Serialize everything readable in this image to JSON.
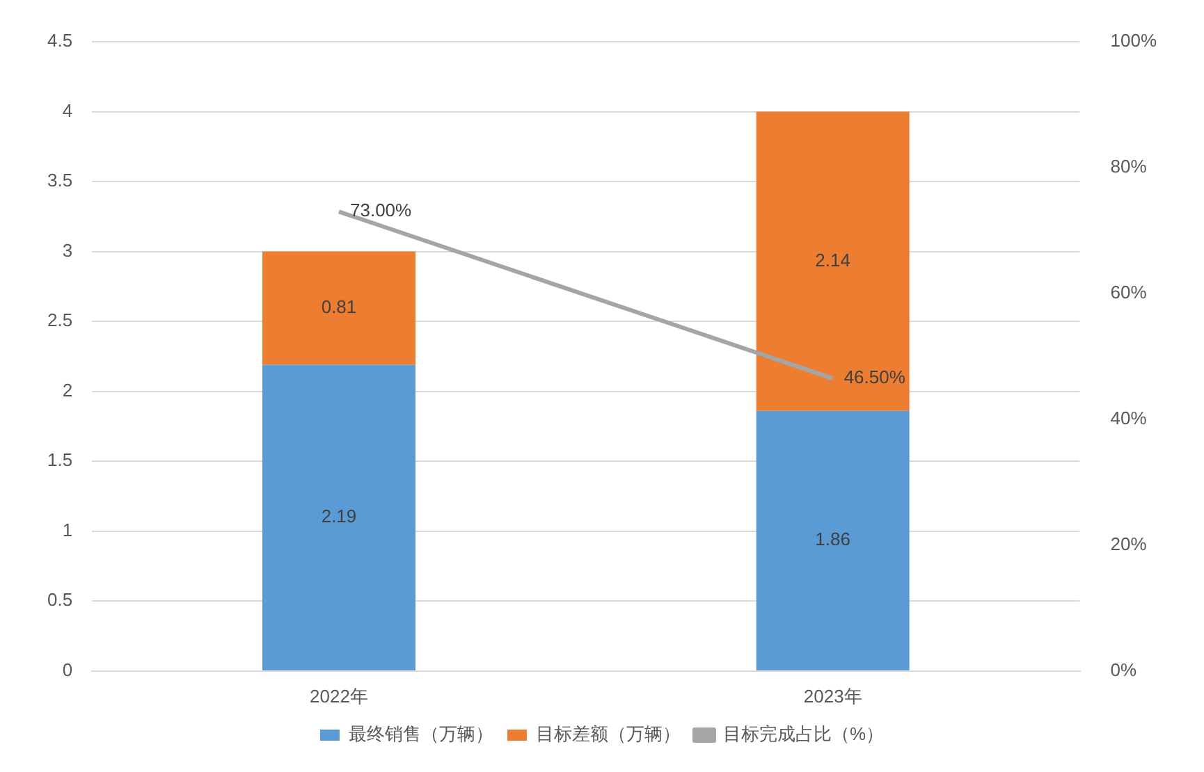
{
  "chart_data": {
    "type": "bar",
    "stacked": true,
    "categories": [
      "2022年",
      "2023年"
    ],
    "series": [
      {
        "name": "最终销售（万辆）",
        "color": "#5b9bd5",
        "values": [
          2.19,
          1.86
        ],
        "value_labels": [
          "2.19",
          "1.86"
        ]
      },
      {
        "name": "目标差额（万辆）",
        "color": "#ed7d31",
        "values": [
          0.81,
          2.14
        ],
        "value_labels": [
          "0.81",
          "2.14"
        ]
      },
      {
        "name": "目标完成占比（%）",
        "type": "line",
        "axis": "y2",
        "marker": "none",
        "color": "#a5a5a5",
        "values": [
          73,
          46.5
        ],
        "value_labels": [
          "73.00%",
          "46.50%"
        ]
      }
    ],
    "ylim": [
      0,
      4.5
    ],
    "yticks": [
      0,
      0.5,
      1,
      1.5,
      2,
      2.5,
      3,
      3.5,
      4,
      4.5
    ],
    "y2lim": [
      0,
      100
    ],
    "y2ticks": [
      {
        "value": 0,
        "label": "0%"
      },
      {
        "value": 20,
        "label": "20%"
      },
      {
        "value": 40,
        "label": "40%"
      },
      {
        "value": 60,
        "label": "60%"
      },
      {
        "value": 80,
        "label": "80%"
      },
      {
        "value": 100,
        "label": "100%"
      }
    ],
    "grid": "y",
    "legend": "bottom"
  }
}
